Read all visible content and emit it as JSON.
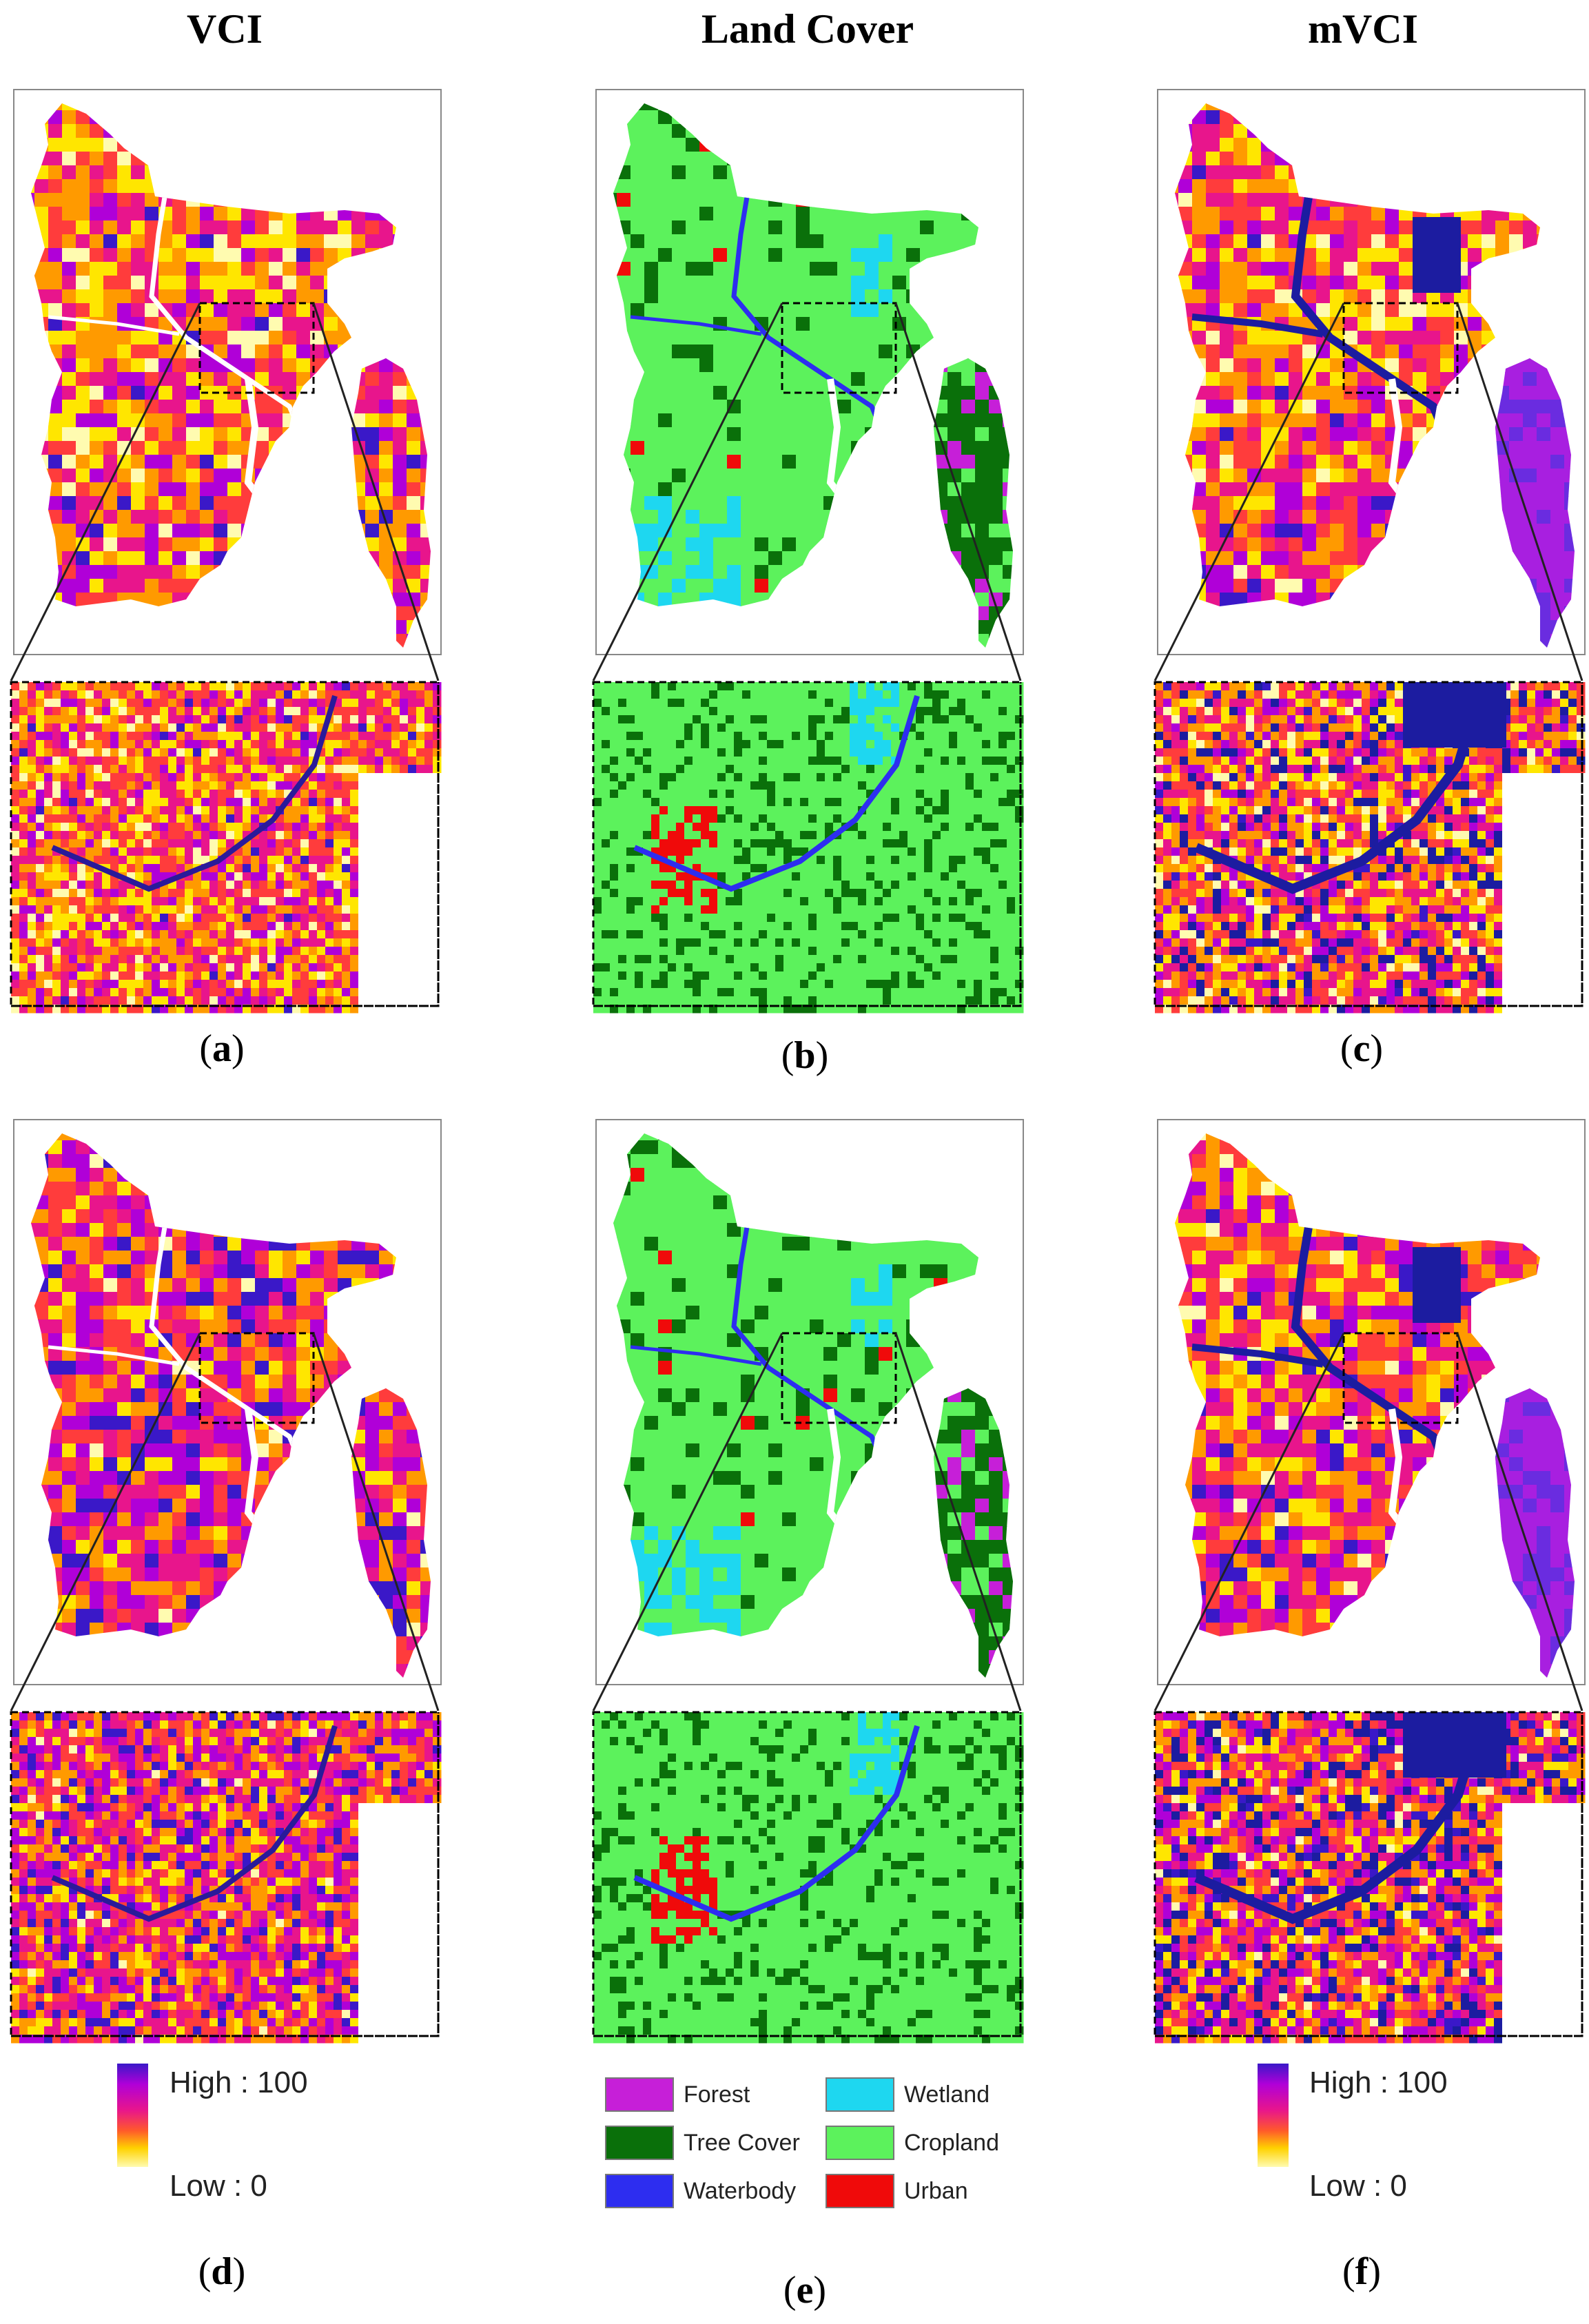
{
  "columns": [
    {
      "title": "VCI"
    },
    {
      "title": "Land Cover"
    },
    {
      "title": "mVCI"
    }
  ],
  "panels": [
    {
      "id": "a",
      "type": "vci",
      "label": "a"
    },
    {
      "id": "b",
      "type": "landcover",
      "label": "b"
    },
    {
      "id": "c",
      "type": "mvci",
      "label": "c"
    },
    {
      "id": "d",
      "type": "vci2",
      "label": "d"
    },
    {
      "id": "e",
      "type": "landcover",
      "label": "e"
    },
    {
      "id": "f",
      "type": "mvci2",
      "label": "f"
    }
  ],
  "legend_vci": {
    "high": "High : 100",
    "low": "Low : 0"
  },
  "legend_mvci": {
    "high": "High : 100",
    "low": "Low : 0"
  },
  "legend_landcover": [
    {
      "label": "Forest",
      "color": "#c61fd8"
    },
    {
      "label": "Wetland",
      "color": "#1ed7f0"
    },
    {
      "label": "Tree Cover",
      "color": "#0a700a"
    },
    {
      "label": "Cropland",
      "color": "#5cf25c"
    },
    {
      "label": "Waterbody",
      "color": "#2d2df0"
    },
    {
      "label": "Urban",
      "color": "#f00a0a"
    }
  ],
  "colors": {
    "vci_ramp": [
      "#fffbb0",
      "#ffe600",
      "#ff9a00",
      "#ff3c3c",
      "#e8158c",
      "#b000d8",
      "#3a18c8"
    ],
    "water": "#1c1ca0",
    "landcover_water": "#2d2df0"
  }
}
